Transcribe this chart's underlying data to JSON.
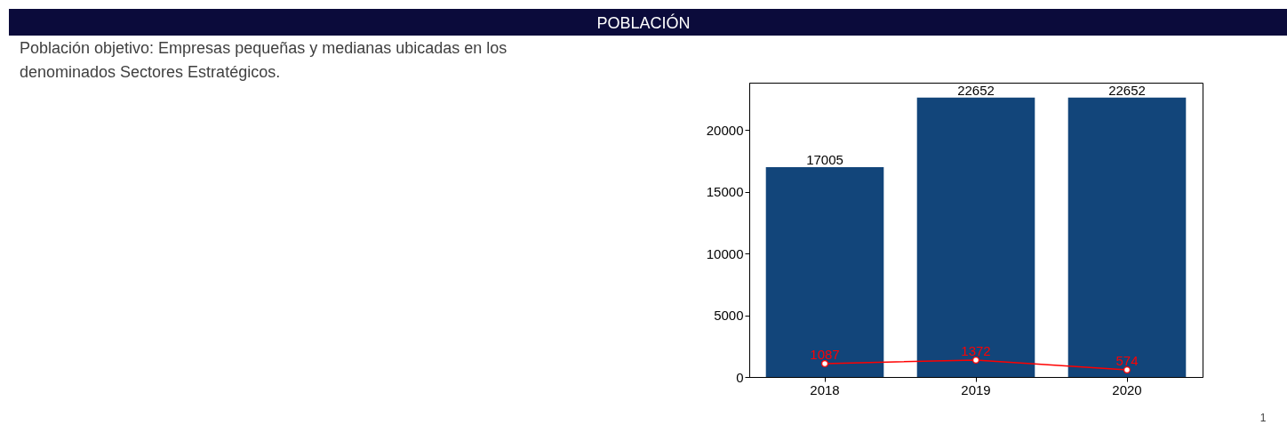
{
  "chart_data": {
    "type": "bar",
    "title": "POBLACIÓN",
    "annotations": [
      "Población objetivo: Empresas pequeñas y medianas ubicadas en los denominados Sectores Estratégicos.",
      "1"
    ],
    "categories": [
      "2018",
      "2019",
      "2020"
    ],
    "series": [
      {
        "color": "#12457a",
        "values": [
          17005,
          22652,
          22652
        ]
      },
      {
        "type": "line",
        "color": "#ff0000",
        "values": [
          1087,
          1372,
          574
        ],
        "marker": "circle"
      }
    ],
    "ylim": [
      0,
      23850
    ],
    "yticks": [
      0,
      5000,
      10000,
      15000,
      20000
    ],
    "data_labels": true,
    "grid": false
  }
}
